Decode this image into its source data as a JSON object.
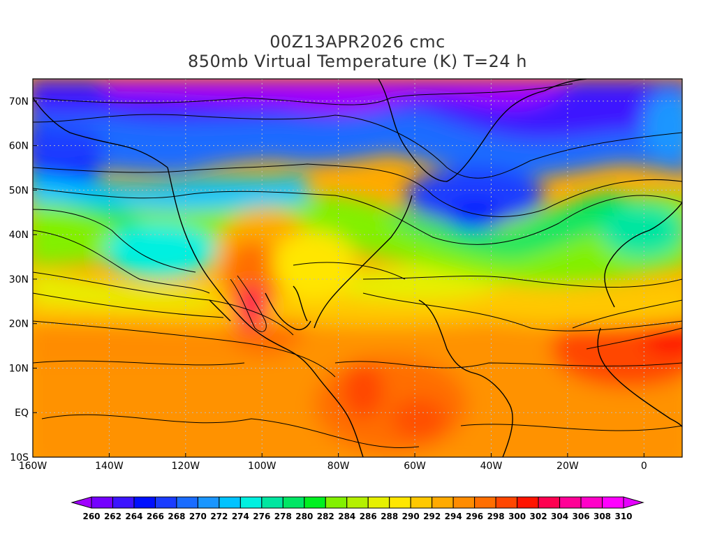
{
  "header": {
    "run": "00Z13APR2026 cmc",
    "product": "850mb Virtual Temperature (K) T=24 h"
  },
  "map": {
    "lon_labels": [
      "160W",
      "140W",
      "120W",
      "100W",
      "80W",
      "60W",
      "40W",
      "20W",
      "0"
    ],
    "lat_labels": [
      "70N",
      "60N",
      "50N",
      "40N",
      "30N",
      "20N",
      "10N",
      "EQ",
      "10S"
    ],
    "lon_range": [
      -160,
      10
    ],
    "lat_range": [
      -10,
      75
    ],
    "grid": "dotted"
  },
  "colorbar": {
    "unit": "K",
    "levels": [
      "260",
      "262",
      "264",
      "266",
      "268",
      "270",
      "272",
      "274",
      "276",
      "278",
      "280",
      "282",
      "284",
      "286",
      "288",
      "290",
      "292",
      "294",
      "296",
      "298",
      "300",
      "302",
      "304",
      "306",
      "308",
      "310"
    ],
    "colors": [
      "#a000ff",
      "#7400ff",
      "#3c14ff",
      "#0010ff",
      "#1a3cff",
      "#1a6cff",
      "#1a96ff",
      "#00c3ff",
      "#00f0e0",
      "#00e6a0",
      "#00e664",
      "#00f020",
      "#82f000",
      "#b4f000",
      "#e6f000",
      "#ffe600",
      "#ffc800",
      "#ffaa00",
      "#ff8c00",
      "#ff6e00",
      "#ff4600",
      "#ff1400",
      "#ff0050",
      "#ff0096",
      "#ff00c8",
      "#ff00ff",
      "#e600ff"
    ]
  }
}
